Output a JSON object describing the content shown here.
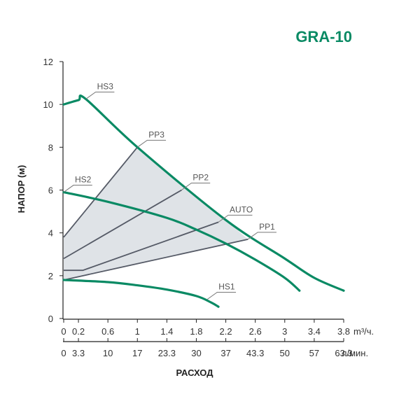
{
  "chart_data": {
    "type": "line",
    "title": "GRA-10",
    "xlabel": "РАСХОД",
    "ylabel": "НАПОР (м)",
    "xlim": [
      0,
      3.8
    ],
    "ylim": [
      0,
      12
    ],
    "grid": false,
    "x_ticks": [
      "0",
      "0.2",
      "0.6",
      "1",
      "1.4",
      "1.8",
      "2.2",
      "2.6",
      "3",
      "3.4",
      "3.8"
    ],
    "x_unit": "m³/ч.",
    "x2_ticks": [
      "0",
      "3.3",
      "10",
      "17",
      "23.3",
      "30",
      "37",
      "43.3",
      "50",
      "57",
      "63.3"
    ],
    "x2_unit": "л/мин.",
    "y_ticks": [
      "0",
      "2",
      "4",
      "6",
      "8",
      "10",
      "12"
    ],
    "colors": {
      "pump_curve": "#0a8a64",
      "control_line": "#555a66",
      "region_fill": "#d4d9df",
      "title": "#0a8a64"
    },
    "series": [
      {
        "name": "HS3",
        "kind": "pump",
        "points": [
          [
            0,
            10.0
          ],
          [
            0.2,
            10.2
          ],
          [
            0.3,
            10.25
          ],
          [
            1.0,
            8.0
          ],
          [
            2.2,
            4.6
          ],
          [
            3.0,
            2.8
          ],
          [
            3.4,
            1.9
          ],
          [
            3.8,
            1.3
          ]
        ]
      },
      {
        "name": "HS2",
        "kind": "pump",
        "points": [
          [
            0,
            5.9
          ],
          [
            0.6,
            5.45
          ],
          [
            1.4,
            4.7
          ],
          [
            1.8,
            4.15
          ],
          [
            2.2,
            3.5
          ],
          [
            2.6,
            2.75
          ],
          [
            3.0,
            1.9
          ],
          [
            3.2,
            1.3
          ]
        ]
      },
      {
        "name": "HS1",
        "kind": "pump",
        "points": [
          [
            0,
            1.8
          ],
          [
            0.6,
            1.7
          ],
          [
            1.0,
            1.55
          ],
          [
            1.4,
            1.35
          ],
          [
            1.8,
            1.05
          ],
          [
            2.0,
            0.75
          ],
          [
            2.1,
            0.55
          ]
        ]
      },
      {
        "name": "PP3",
        "kind": "control",
        "points": [
          [
            0,
            3.8
          ],
          [
            1.0,
            8.0
          ]
        ]
      },
      {
        "name": "PP2",
        "kind": "control",
        "points": [
          [
            0,
            2.8
          ],
          [
            1.6,
            6.0
          ]
        ]
      },
      {
        "name": "AUTO",
        "kind": "control",
        "points": [
          [
            0,
            2.25
          ],
          [
            0.26,
            2.25
          ],
          [
            2.1,
            4.5
          ]
        ]
      },
      {
        "name": "PP1",
        "kind": "control",
        "points": [
          [
            0,
            1.8
          ],
          [
            2.5,
            3.7
          ]
        ]
      }
    ],
    "region": [
      [
        0,
        3.8
      ],
      [
        1.0,
        8.0
      ],
      [
        2.2,
        4.6
      ],
      [
        2.5,
        3.7
      ],
      [
        0,
        1.8
      ]
    ],
    "callouts": [
      {
        "name": "HS3",
        "at": [
          0.3,
          10.25
        ]
      },
      {
        "name": "HS2",
        "at": [
          0.0,
          5.9
        ]
      },
      {
        "name": "HS1",
        "at": [
          1.95,
          0.9
        ]
      },
      {
        "name": "PP3",
        "at": [
          1.0,
          8.0
        ]
      },
      {
        "name": "PP2",
        "at": [
          1.6,
          6.0
        ]
      },
      {
        "name": "AUTO",
        "at": [
          2.1,
          4.5
        ]
      },
      {
        "name": "PP1",
        "at": [
          2.5,
          3.7
        ]
      }
    ]
  }
}
